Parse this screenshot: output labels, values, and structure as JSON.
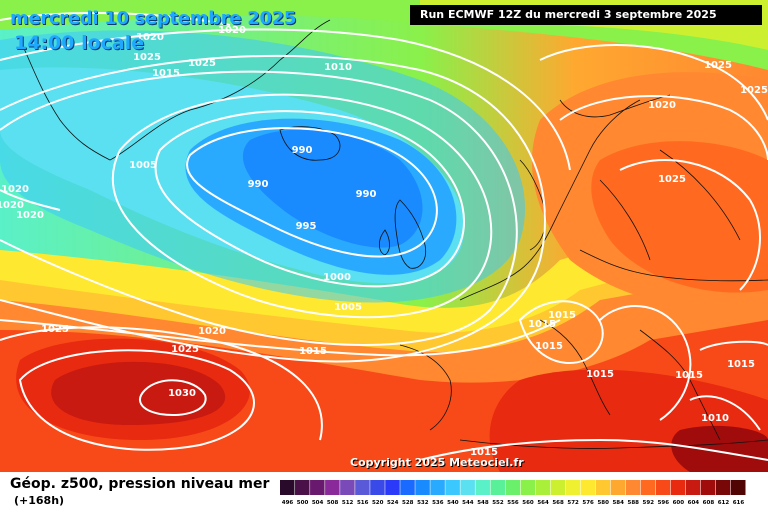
{
  "header": {
    "date": "mercredi 10 septembre 2025",
    "time": "14:00 locale",
    "run": "Run ECMWF 12Z du mercredi 3 septembre 2025"
  },
  "copyright": "Copyright 2025 Meteociel.fr",
  "legend": {
    "title": "Géop. z500, pression niveau mer",
    "subtitle": "(+168h)",
    "ticks": [
      "496",
      "500",
      "504",
      "508",
      "512",
      "516",
      "520",
      "524",
      "528",
      "532",
      "536",
      "540",
      "544",
      "548",
      "552",
      "556",
      "560",
      "564",
      "568",
      "572",
      "576",
      "580",
      "584",
      "588",
      "592",
      "596",
      "600",
      "604",
      "608",
      "612",
      "616"
    ],
    "colors": [
      "#2a0a2a",
      "#4a1048",
      "#6a1a6e",
      "#8a2a9a",
      "#7a4ab8",
      "#5a5ad8",
      "#3a4ae8",
      "#2a3af8",
      "#1a6aff",
      "#1a8aff",
      "#2aaaff",
      "#3ac8ff",
      "#5ae0f0",
      "#5af0c8",
      "#5af09a",
      "#6af06a",
      "#8af04a",
      "#aaf03a",
      "#ccf030",
      "#eef030",
      "#ffe830",
      "#ffc830",
      "#ffa830",
      "#ff8830",
      "#ff6a20",
      "#f84a18",
      "#e82a10",
      "#c81a10",
      "#a00c0c",
      "#780808",
      "#500404"
    ]
  },
  "isobar_labels": [
    {
      "text": "1020"
    },
    {
      "text": "1020"
    },
    {
      "text": "1025"
    },
    {
      "text": "1015"
    },
    {
      "text": "1025"
    },
    {
      "text": "1010"
    },
    {
      "text": "1005"
    },
    {
      "text": "1020"
    },
    {
      "text": "1020"
    },
    {
      "text": "1020"
    },
    {
      "text": "990"
    },
    {
      "text": "990"
    },
    {
      "text": "990"
    },
    {
      "text": "995"
    },
    {
      "text": "1000"
    },
    {
      "text": "1005"
    },
    {
      "text": "1025"
    },
    {
      "text": "1020"
    },
    {
      "text": "1025"
    },
    {
      "text": "1015"
    },
    {
      "text": "1030"
    },
    {
      "text": "1025"
    },
    {
      "text": "1025"
    },
    {
      "text": "1020"
    },
    {
      "text": "1025"
    },
    {
      "text": "1015"
    },
    {
      "text": "1015"
    },
    {
      "text": "1015"
    },
    {
      "text": "1015"
    },
    {
      "text": "1015"
    },
    {
      "text": "1015"
    },
    {
      "text": "1010"
    },
    {
      "text": "1015"
    }
  ]
}
